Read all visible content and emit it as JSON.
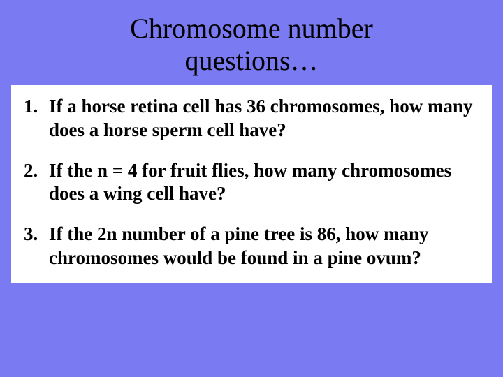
{
  "colors": {
    "background": "#7a7af2",
    "box_background": "#ffffff",
    "text": "#000000"
  },
  "typography": {
    "font_family": "Times New Roman",
    "title_fontsize": 40,
    "title_weight": "normal",
    "body_fontsize": 27,
    "body_weight": "bold"
  },
  "slide": {
    "title_line1": "Chromosome number",
    "title_line2": "questions…",
    "questions": [
      {
        "number": "1.",
        "text": "If  a horse retina cell has 36 chromosomes, how many does a horse sperm cell have?"
      },
      {
        "number": "2.",
        "text": "If the n = 4 for fruit flies,  how many chromosomes does a wing cell have?"
      },
      {
        "number": "3.",
        "text": " If the 2n number of a pine tree is 86, how many chromosomes would be found in a pine ovum?"
      }
    ]
  }
}
